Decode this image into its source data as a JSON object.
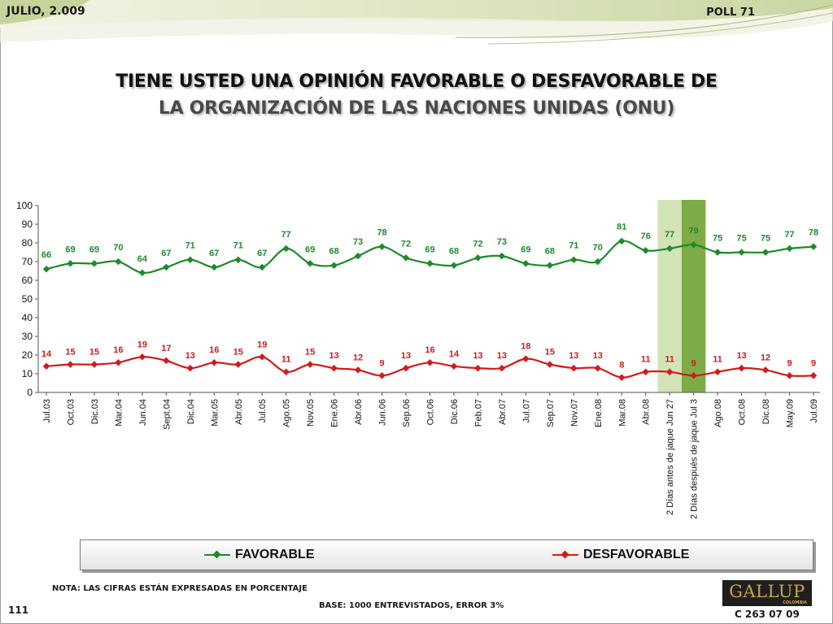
{
  "header": {
    "date": "JULIO, 2.009",
    "poll": "POLL 71"
  },
  "title_line1": "TIENE USTED UNA OPINIÓN FAVORABLE O DESFAVORABLE DE",
  "title_line2": "LA ORGANIZACIÓN DE LAS NACIONES UNIDAS (ONU)",
  "footer": {
    "note": "NOTA: LAS CIFRAS ESTÁN EXPRESADAS EN PORCENTAJE",
    "base": "BASE: 1000 ENTREVISTADOS, ERROR 3%",
    "page_number": "111",
    "code": "C 263 07 09",
    "logo_text": "GALLUP",
    "logo_sub": "COLOMBIA"
  },
  "colors": {
    "favorable": "#1e8a2a",
    "desfavorable": "#d41a1a",
    "band_light": "#d3e3b8",
    "band_dark": "#7dab47"
  },
  "chart_data": {
    "type": "line",
    "categories": [
      "Jul.03",
      "Oct.03",
      "Dic.03",
      "Mar.04",
      "Jun.04",
      "Sept.04",
      "Dic.04",
      "Mar.05",
      "Abr.05",
      "Jul.05",
      "Ago.05",
      "Nov.05",
      "Ene.06",
      "Abr.06",
      "Jun.06",
      "Sep.06",
      "Oct.06",
      "Dic.06",
      "Feb.07",
      "Abr.07",
      "Jul.07",
      "Sep.07",
      "Nov.07",
      "Ene.08",
      "Mar.08",
      "Abr.08",
      "2 Días antes de jaque Jun 27",
      "2 Días después de jaque Jul 3",
      "Ago.08",
      "Oct.08",
      "Dic.08",
      "May.09",
      "Jul.09"
    ],
    "series": [
      {
        "name": "FAVORABLE",
        "values": [
          66,
          69,
          69,
          70,
          64,
          67,
          71,
          67,
          71,
          67,
          77,
          69,
          68,
          73,
          78,
          72,
          69,
          68,
          72,
          73,
          69,
          68,
          71,
          70,
          81,
          76,
          77,
          79,
          75,
          75,
          75,
          77,
          78
        ]
      },
      {
        "name": "DESFAVORABLE",
        "values": [
          14,
          15,
          15,
          16,
          19,
          17,
          13,
          16,
          15,
          19,
          11,
          15,
          13,
          12,
          9,
          13,
          16,
          14,
          13,
          13,
          18,
          15,
          13,
          13,
          8,
          11,
          11,
          9,
          11,
          13,
          12,
          9,
          9
        ]
      }
    ],
    "yticks": [
      0,
      10,
      20,
      30,
      40,
      50,
      60,
      70,
      80,
      90,
      100
    ],
    "ylim": [
      0,
      100
    ],
    "highlighted_categories": [
      "2 Días antes de jaque Jun 27",
      "2 Días después de jaque Jul 3"
    ],
    "legend_position": "bottom",
    "grid": false
  }
}
